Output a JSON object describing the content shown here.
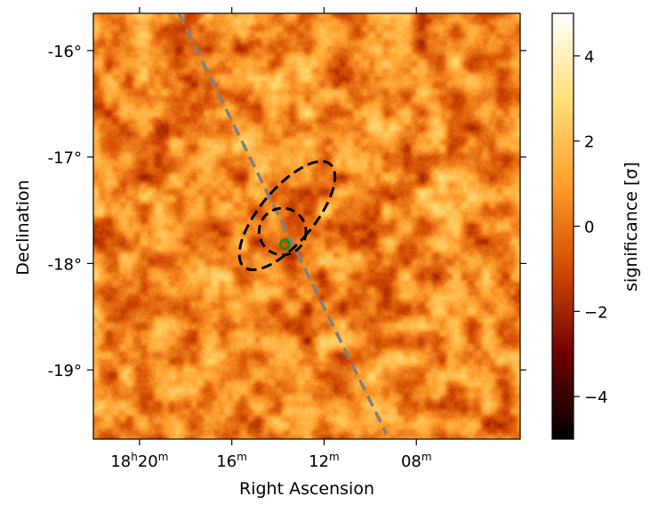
{
  "chart_data": {
    "type": "heatmap",
    "title": "",
    "xlabel": "Right Ascension",
    "ylabel": "Declination",
    "x_unit": "RA minutes of time (18h offset)",
    "xlim": [
      22.0,
      3.5
    ],
    "ylim": [
      -19.65,
      -15.65
    ],
    "x_ticks": [
      {
        "value": 20.0,
        "label": "18h20m"
      },
      {
        "value": 16.0,
        "label": "16m"
      },
      {
        "value": 12.0,
        "label": "12m"
      },
      {
        "value": 8.0,
        "label": "08m"
      }
    ],
    "y_ticks": [
      {
        "value": -16,
        "label": "-16°"
      },
      {
        "value": -17,
        "label": "-17°"
      },
      {
        "value": -18,
        "label": "-18°"
      },
      {
        "value": -19,
        "label": "-19°"
      }
    ],
    "colorbar": {
      "label": "significance [σ]",
      "range": [
        -5,
        5
      ],
      "ticks": [
        {
          "value": 4,
          "label": "4"
        },
        {
          "value": 2,
          "label": "2"
        },
        {
          "value": 0,
          "label": "0"
        },
        {
          "value": -2,
          "label": "−2"
        },
        {
          "value": -4,
          "label": "−4"
        }
      ],
      "colormap": "afmhot",
      "color_stops": [
        "#000000",
        "#6e0000",
        "#d24a00",
        "#ff9f2e",
        "#ffe07a",
        "#ffffff"
      ]
    },
    "overlays": {
      "galactic_plane": {
        "style": "dashed",
        "color": "#808080",
        "from": {
          "ra": 18.3,
          "dec": -15.65
        },
        "to": {
          "ra": 9.3,
          "dec": -19.6
        }
      },
      "large_ellipse": {
        "style": "dashed",
        "color": "#000000",
        "center": {
          "ra": 13.6,
          "dec": -17.55
        },
        "semi_axis_ra": 1.8,
        "semi_axis_dec": 0.42,
        "angle_deg": 40
      },
      "small_circle": {
        "style": "dashed",
        "color": "#000000",
        "center": {
          "ra": 13.8,
          "dec": -17.7
        },
        "radius_deg": 0.2
      },
      "source_marker": {
        "color": "#1a8f1a",
        "ra": 13.7,
        "dec": -17.82
      }
    }
  }
}
